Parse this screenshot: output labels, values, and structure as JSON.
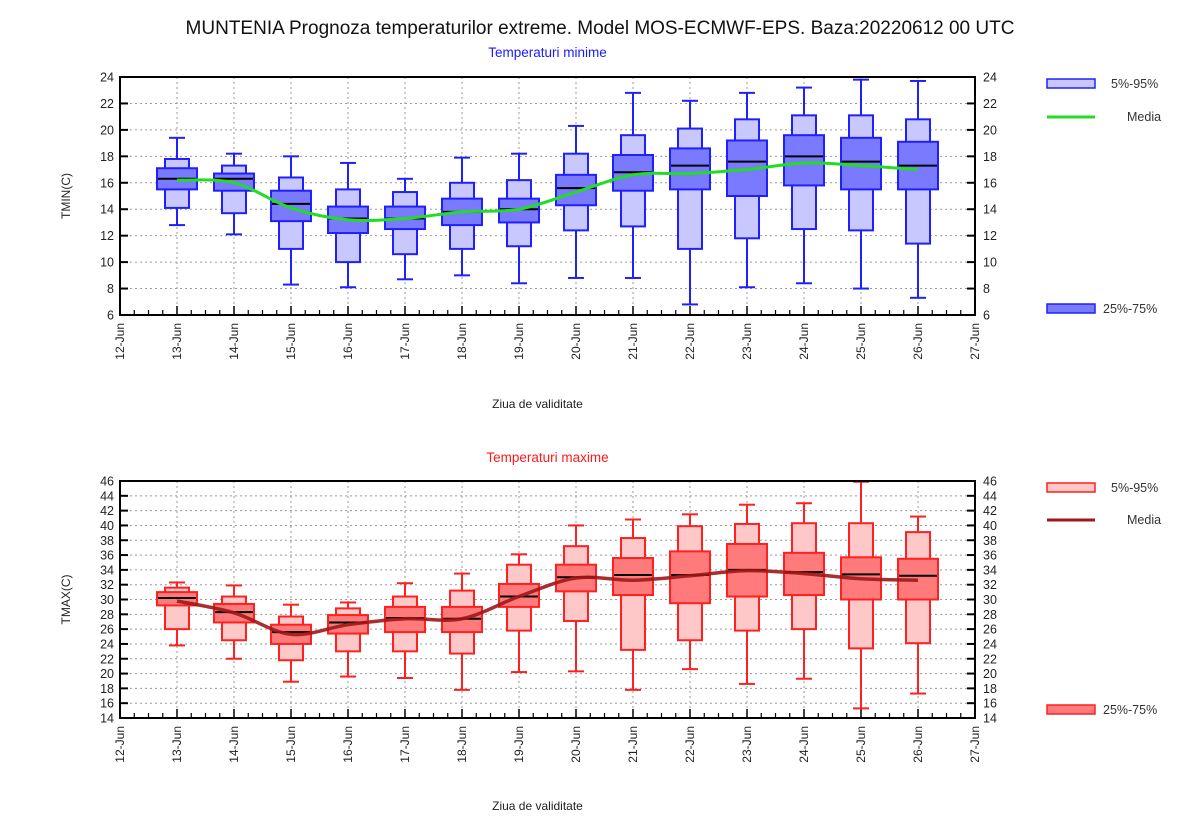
{
  "page": {
    "title": "MUNTENIA  Prognoza temperaturilor extreme.  Model MOS-ECMWF-EPS. Baza:20220612 00 UTC"
  },
  "chart_data": [
    {
      "type": "boxplot",
      "id": "tmin",
      "title": "Temperaturi minime",
      "title_color": "#1a1aff",
      "xlabel": "Ziua de validitate",
      "ylabel": "TMIN(C)",
      "ylim": [
        6,
        24
      ],
      "yticks": [
        6,
        8,
        10,
        12,
        14,
        16,
        18,
        20,
        22,
        24
      ],
      "xticks": [
        "12-Jun",
        "13-Jun",
        "14-Jun",
        "15-Jun",
        "16-Jun",
        "17-Jun",
        "18-Jun",
        "19-Jun",
        "20-Jun",
        "21-Jun",
        "22-Jun",
        "23-Jun",
        "24-Jun",
        "25-Jun",
        "26-Jun",
        "27-Jun"
      ],
      "grid": true,
      "colors": {
        "outer_fill": "#c8c8ff",
        "inner_fill": "#7a7aff",
        "stroke": "#2020ff",
        "median": "#000000",
        "mean_line": "#22dd22"
      },
      "legend": {
        "position": "right",
        "items": [
          {
            "label": "5%-95%",
            "kind": "outer-box"
          },
          {
            "label": "Media",
            "kind": "mean-line"
          },
          {
            "label": "25%-75%",
            "kind": "inner-box"
          }
        ]
      },
      "categories": [
        "13-Jun",
        "14-Jun",
        "15-Jun",
        "16-Jun",
        "17-Jun",
        "18-Jun",
        "19-Jun",
        "20-Jun",
        "21-Jun",
        "22-Jun",
        "23-Jun",
        "24-Jun",
        "25-Jun",
        "26-Jun"
      ],
      "series": [
        {
          "name": "min",
          "values": [
            12.8,
            12.1,
            8.3,
            8.1,
            8.7,
            9.0,
            8.4,
            8.8,
            8.8,
            6.8,
            8.1,
            8.4,
            8.0,
            7.3
          ]
        },
        {
          "name": "p5",
          "values": [
            14.1,
            13.7,
            11.0,
            10.0,
            10.6,
            11.0,
            11.2,
            12.4,
            12.7,
            11.0,
            11.8,
            12.5,
            12.4,
            11.4
          ]
        },
        {
          "name": "p25",
          "values": [
            15.5,
            15.4,
            13.1,
            12.2,
            12.5,
            12.8,
            13.0,
            14.3,
            15.4,
            15.5,
            15.0,
            15.8,
            15.5,
            15.5
          ]
        },
        {
          "name": "median",
          "values": [
            16.3,
            16.3,
            14.4,
            13.3,
            13.3,
            13.8,
            14.0,
            15.6,
            16.8,
            17.3,
            17.6,
            18.0,
            17.6,
            17.3
          ]
        },
        {
          "name": "p75",
          "values": [
            17.1,
            16.7,
            15.4,
            14.2,
            14.2,
            14.8,
            14.8,
            16.6,
            18.1,
            18.6,
            19.2,
            19.6,
            19.4,
            19.1
          ]
        },
        {
          "name": "p95",
          "values": [
            17.8,
            17.3,
            16.4,
            15.5,
            15.3,
            16.0,
            16.2,
            18.2,
            19.6,
            20.1,
            20.8,
            21.1,
            21.1,
            20.8
          ]
        },
        {
          "name": "max",
          "values": [
            19.4,
            18.2,
            18.0,
            17.5,
            16.3,
            17.9,
            18.2,
            20.3,
            22.8,
            22.2,
            22.8,
            23.2,
            23.8,
            23.7
          ]
        },
        {
          "name": "Media",
          "values": [
            16.2,
            16.0,
            14.1,
            13.2,
            13.3,
            13.8,
            14.0,
            15.3,
            16.6,
            16.7,
            17.0,
            17.5,
            17.3,
            17.0
          ]
        }
      ]
    },
    {
      "type": "boxplot",
      "id": "tmax",
      "title": "Temperaturi maxime",
      "title_color": "#ff1a1a",
      "xlabel": "Ziua de validitate",
      "ylabel": "TMAX(C)",
      "ylim": [
        14,
        46
      ],
      "yticks": [
        14,
        16,
        18,
        20,
        22,
        24,
        26,
        28,
        30,
        32,
        34,
        36,
        38,
        40,
        42,
        44,
        46
      ],
      "xticks": [
        "12-Jun",
        "13-Jun",
        "14-Jun",
        "15-Jun",
        "16-Jun",
        "17-Jun",
        "18-Jun",
        "19-Jun",
        "20-Jun",
        "21-Jun",
        "22-Jun",
        "23-Jun",
        "24-Jun",
        "25-Jun",
        "26-Jun",
        "27-Jun"
      ],
      "grid": true,
      "colors": {
        "outer_fill": "#ffc8c8",
        "inner_fill": "#ff7a7a",
        "stroke": "#ff2020",
        "median": "#000000",
        "mean_line": "#a01818"
      },
      "legend": {
        "position": "right",
        "items": [
          {
            "label": "5%-95%",
            "kind": "outer-box"
          },
          {
            "label": "Media",
            "kind": "mean-line"
          },
          {
            "label": "25%-75%",
            "kind": "inner-box"
          }
        ]
      },
      "categories": [
        "13-Jun",
        "14-Jun",
        "15-Jun",
        "16-Jun",
        "17-Jun",
        "18-Jun",
        "19-Jun",
        "20-Jun",
        "21-Jun",
        "22-Jun",
        "23-Jun",
        "24-Jun",
        "25-Jun",
        "26-Jun"
      ],
      "series": [
        {
          "name": "min",
          "values": [
            23.8,
            22.0,
            18.9,
            19.6,
            19.4,
            17.8,
            20.2,
            20.3,
            17.8,
            20.6,
            18.6,
            19.3,
            15.3,
            17.3
          ]
        },
        {
          "name": "p5",
          "values": [
            26.0,
            24.5,
            21.8,
            23.0,
            23.0,
            22.7,
            25.8,
            27.1,
            23.2,
            24.5,
            25.8,
            26.0,
            23.4,
            24.1
          ]
        },
        {
          "name": "p25",
          "values": [
            29.2,
            26.9,
            24.0,
            25.4,
            25.6,
            25.6,
            29.0,
            31.1,
            30.6,
            29.5,
            30.4,
            30.6,
            30.0,
            30.0
          ]
        },
        {
          "name": "median",
          "values": [
            30.2,
            28.3,
            25.6,
            26.9,
            27.5,
            27.4,
            30.4,
            33.0,
            33.3,
            33.3,
            34.0,
            33.7,
            33.4,
            33.2
          ]
        },
        {
          "name": "p75",
          "values": [
            31.0,
            29.4,
            26.6,
            27.9,
            29.0,
            29.0,
            32.1,
            34.7,
            35.6,
            36.5,
            37.5,
            36.3,
            35.7,
            35.5
          ]
        },
        {
          "name": "p95",
          "values": [
            31.6,
            30.4,
            27.7,
            28.8,
            30.4,
            31.2,
            34.7,
            37.2,
            38.3,
            39.9,
            40.2,
            40.3,
            40.3,
            39.1
          ]
        },
        {
          "name": "max",
          "values": [
            32.3,
            31.9,
            29.3,
            29.6,
            32.2,
            33.5,
            36.1,
            40.0,
            40.8,
            41.5,
            42.8,
            43.0,
            45.9,
            41.2
          ]
        },
        {
          "name": "Media",
          "values": [
            29.8,
            28.2,
            25.3,
            26.6,
            27.4,
            27.4,
            30.4,
            32.9,
            32.6,
            33.2,
            33.9,
            33.5,
            32.8,
            32.6
          ]
        }
      ]
    }
  ]
}
